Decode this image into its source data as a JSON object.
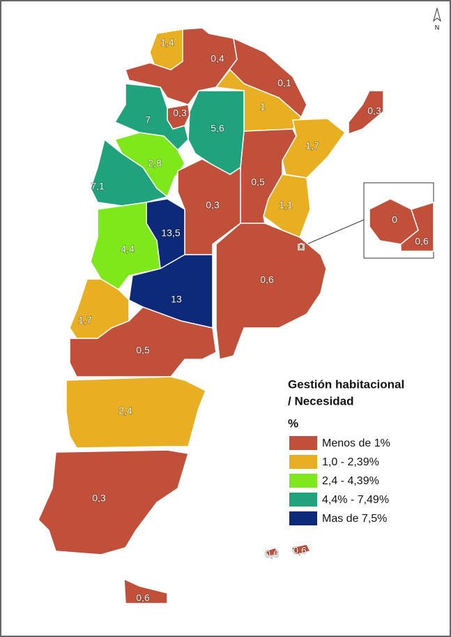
{
  "north": "N",
  "legend": {
    "title": [
      "Gestión habitacional",
      "/ Necesidad"
    ],
    "unit": "%",
    "items": [
      {
        "label": "Menos de 1%",
        "color": "#c0503a"
      },
      {
        "label": "1,0 - 2,39%",
        "color": "#e9af22"
      },
      {
        "label": "2,4 - 4,39%",
        "color": "#7fe81a"
      },
      {
        "label": "4,4% - 7,49%",
        "color": "#20a27c"
      },
      {
        "label": "Mas de 7,5%",
        "color": "#0d2a7a"
      }
    ]
  },
  "regions": [
    {
      "label": "1,4",
      "category": 1
    },
    {
      "label": "0,4",
      "category": 0
    },
    {
      "label": "0,1",
      "category": 0
    },
    {
      "label": "1",
      "category": 1
    },
    {
      "label": "0,3",
      "category": 0
    },
    {
      "label": "1,7",
      "category": 1
    },
    {
      "label": "1,1",
      "category": 1
    },
    {
      "label": "0,5",
      "category": 0
    },
    {
      "label": "5,6",
      "category": 3
    },
    {
      "label": "0,3",
      "category": 0
    },
    {
      "label": "7",
      "category": 3
    },
    {
      "label": "2,8",
      "category": 2
    },
    {
      "label": "7,1",
      "category": 3
    },
    {
      "label": "0,3",
      "category": 0
    },
    {
      "label": "13,5",
      "category": 4
    },
    {
      "label": "4,4",
      "category": 2
    },
    {
      "label": "13",
      "category": 4
    },
    {
      "label": "0,6",
      "category": 0
    },
    {
      "label": "0",
      "category": 0
    },
    {
      "label": "1,7",
      "category": 1
    },
    {
      "label": "0,5",
      "category": 0
    },
    {
      "label": "2,4",
      "category": 1
    },
    {
      "label": "0,3",
      "category": 0
    },
    {
      "label": "0,6",
      "category": 0
    },
    {
      "label": "0,6",
      "category": 0
    },
    {
      "label": "0,6",
      "category": 0
    },
    {
      "label": "0",
      "category": 0
    },
    {
      "label": "0,6",
      "category": 0
    }
  ]
}
